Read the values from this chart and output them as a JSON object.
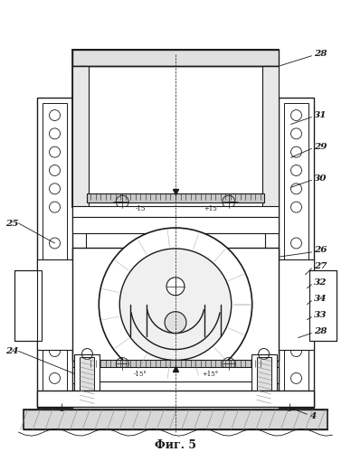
{
  "title": "Фиг. 5",
  "bg_color": "#ffffff",
  "line_color": "#1a1a1a",
  "fig_width": 3.88,
  "fig_height": 5.0,
  "dpi": 100
}
